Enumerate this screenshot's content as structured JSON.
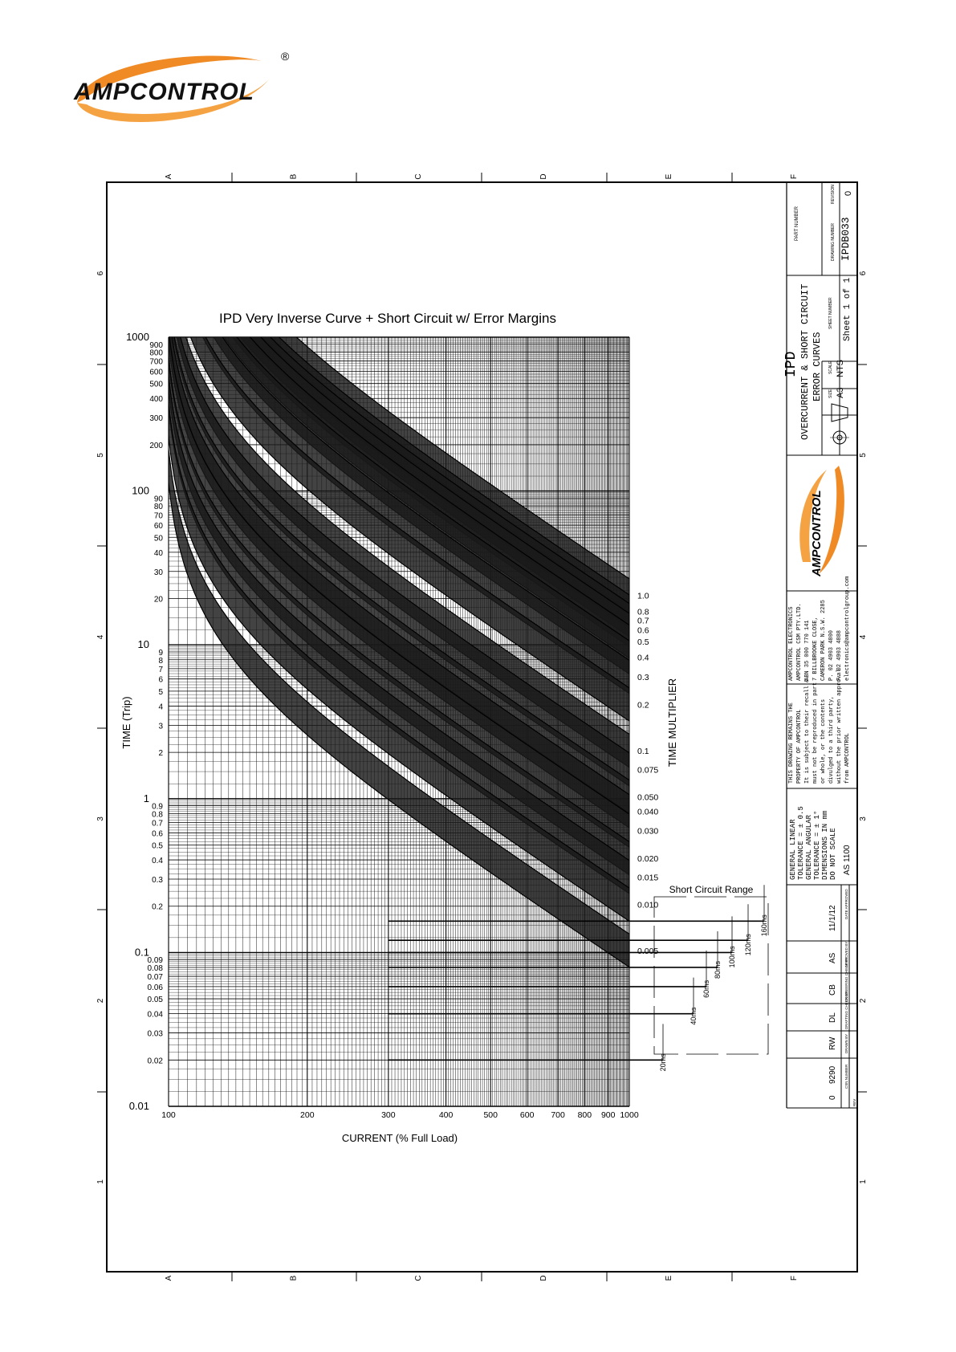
{
  "header": {
    "logo_text": "AMPCONTROL",
    "logo_reg": "®"
  },
  "frame": {
    "columns": [
      "A",
      "B",
      "C",
      "D",
      "E",
      "F"
    ],
    "rows": [
      "6",
      "5",
      "4",
      "3",
      "2",
      "1"
    ]
  },
  "chart_data": {
    "type": "line",
    "title": "IPD Very Inverse Curve + Short Circuit w/ Error Margins",
    "xlabel": "CURRENT (% Full Load)",
    "ylabel": "TIME (Trip)",
    "right_label": "TIME MULTIPLIER",
    "x_scale": "log",
    "y_scale": "log",
    "xlim": [
      100,
      1000
    ],
    "ylim": [
      0.01,
      1000
    ],
    "x_tick_labels": [
      "100",
      "200",
      "300",
      "400",
      "500",
      "600",
      "700",
      "800",
      "900",
      "1000"
    ],
    "y_tick_labels": [
      {
        "v": 1000,
        "t": "1000",
        "major": true
      },
      {
        "v": 900,
        "t": "900"
      },
      {
        "v": 800,
        "t": "800"
      },
      {
        "v": 700,
        "t": "700"
      },
      {
        "v": 600,
        "t": "600"
      },
      {
        "v": 500,
        "t": "500"
      },
      {
        "v": 400,
        "t": "400"
      },
      {
        "v": 300,
        "t": "300"
      },
      {
        "v": 200,
        "t": "200"
      },
      {
        "v": 100,
        "t": "100",
        "major": true
      },
      {
        "v": 90,
        "t": "90"
      },
      {
        "v": 80,
        "t": "80"
      },
      {
        "v": 70,
        "t": "70"
      },
      {
        "v": 60,
        "t": "60"
      },
      {
        "v": 50,
        "t": "50"
      },
      {
        "v": 40,
        "t": "40"
      },
      {
        "v": 30,
        "t": "30"
      },
      {
        "v": 20,
        "t": "20"
      },
      {
        "v": 10,
        "t": "10",
        "major": true
      },
      {
        "v": 9,
        "t": "9"
      },
      {
        "v": 8,
        "t": "8"
      },
      {
        "v": 7,
        "t": "7"
      },
      {
        "v": 6,
        "t": "6"
      },
      {
        "v": 5,
        "t": "5"
      },
      {
        "v": 4,
        "t": "4"
      },
      {
        "v": 3,
        "t": "3"
      },
      {
        "v": 2,
        "t": "2"
      },
      {
        "v": 1,
        "t": "1",
        "major": true
      },
      {
        "v": 0.9,
        "t": "0.9"
      },
      {
        "v": 0.8,
        "t": "0.8"
      },
      {
        "v": 0.7,
        "t": "0.7"
      },
      {
        "v": 0.6,
        "t": "0.6"
      },
      {
        "v": 0.5,
        "t": "0.5"
      },
      {
        "v": 0.4,
        "t": "0.4"
      },
      {
        "v": 0.3,
        "t": "0.3"
      },
      {
        "v": 0.2,
        "t": "0.2"
      },
      {
        "v": 0.1,
        "t": "0.1",
        "major": true
      },
      {
        "v": 0.09,
        "t": "0.09"
      },
      {
        "v": 0.08,
        "t": "0.08"
      },
      {
        "v": 0.07,
        "t": "0.07"
      },
      {
        "v": 0.06,
        "t": "0.06"
      },
      {
        "v": 0.05,
        "t": "0.05"
      },
      {
        "v": 0.04,
        "t": "0.04"
      },
      {
        "v": 0.03,
        "t": "0.03"
      },
      {
        "v": 0.02,
        "t": "0.02"
      },
      {
        "v": 0.01,
        "t": "0.01",
        "major": true
      }
    ],
    "series": [
      {
        "name": "1.0",
        "end_time": 21
      },
      {
        "name": "0.8",
        "end_time": 16.5
      },
      {
        "name": "0.7",
        "end_time": 14.5
      },
      {
        "name": "0.6",
        "end_time": 12.5
      },
      {
        "name": "0.5",
        "end_time": 10.5
      },
      {
        "name": "0.4",
        "end_time": 8.3
      },
      {
        "name": "0.3",
        "end_time": 6.2
      },
      {
        "name": "0.2",
        "end_time": 4.1
      },
      {
        "name": "0.1",
        "end_time": 2.05
      },
      {
        "name": "0.075",
        "end_time": 1.55
      },
      {
        "name": "0.050",
        "end_time": 1.03
      },
      {
        "name": "0.040",
        "end_time": 0.83
      },
      {
        "name": "0.030",
        "end_time": 0.62
      },
      {
        "name": "0.020",
        "end_time": 0.41
      },
      {
        "name": "0.015",
        "end_time": 0.31
      },
      {
        "name": "0.010",
        "end_time": 0.205
      },
      {
        "name": "0.005",
        "end_time": 0.103
      }
    ],
    "short_circuit": {
      "label": "Short Circuit Range",
      "start_current": 300,
      "levels": [
        {
          "label": "20ms",
          "t": 0.02
        },
        {
          "label": "40ms",
          "t": 0.04
        },
        {
          "label": "60ms",
          "t": 0.06
        },
        {
          "label": "80ms",
          "t": 0.08
        },
        {
          "label": "100ms",
          "t": 0.1
        },
        {
          "label": "120ms",
          "t": 0.12
        },
        {
          "label": "160ms",
          "t": 0.16
        }
      ]
    }
  },
  "title_block": {
    "part_number_label": "PART NUMBER",
    "revision_label": "REVISION",
    "revision": "0",
    "drawing_number_label": "DRAWING NUMBER",
    "drawing_number": "IPDB033",
    "title_line1": "IPD",
    "title_line2": "OVERCURRENT & SHORT CIRCUIT",
    "title_line3": "ERROR CURVES",
    "size_label": "SIZE",
    "size": "A3",
    "scale_label": "SCALE",
    "scale": "NTS",
    "sheet_label": "SHEET NUMBER",
    "sheet": "Sheet 1 of 1",
    "logo_text": "AMPCONTROL",
    "company": [
      "AMPCONTROL ELECTRONICS",
      "AMPCONTROL CSM PTY.LTD.",
      "ABN 35 000 770 141",
      "7 BILLBROOKE CLOSE,",
      "CAMERON PARK N.S.W. 2285",
      "P. 02 4903 4800",
      "F. 02 4903 4888",
      "electronics@ampcontrolgroup.com"
    ],
    "notice": [
      "THIS DRAWING REMAINS THE",
      "PROPERTY OF AMPCONTROL",
      "It is subject to their recall &",
      "must not be reproduced in part",
      "or whole, or the contents",
      "divulged to a third party,",
      "without the prior written approval",
      "from AMPCONTROL"
    ],
    "tolerance": [
      "GENERAL LINEAR",
      "TOLERANCE = ± 0.5",
      "GENERAL ANGULAR",
      "TOLERANCE = ± 1°",
      "DIMENSIONS IN mm",
      "DO NOT SCALE"
    ],
    "standard": "AS 1100",
    "date": "11/1/12",
    "date_label": "DATE APPROVED",
    "approved_by": "AS",
    "approved_label": "APPROVED BY",
    "checked_by": "CB",
    "checked_label": "ENGINEERING CHECK BY",
    "drafting_by": "DL",
    "drafting_label": "DRAFTING CHECK BY",
    "drawn_by": "RW",
    "drawn_label": "DRAWN BY",
    "csn": "9290",
    "csn_label": "CSN NUMBER",
    "rev": "0",
    "rev_label": "REV"
  }
}
